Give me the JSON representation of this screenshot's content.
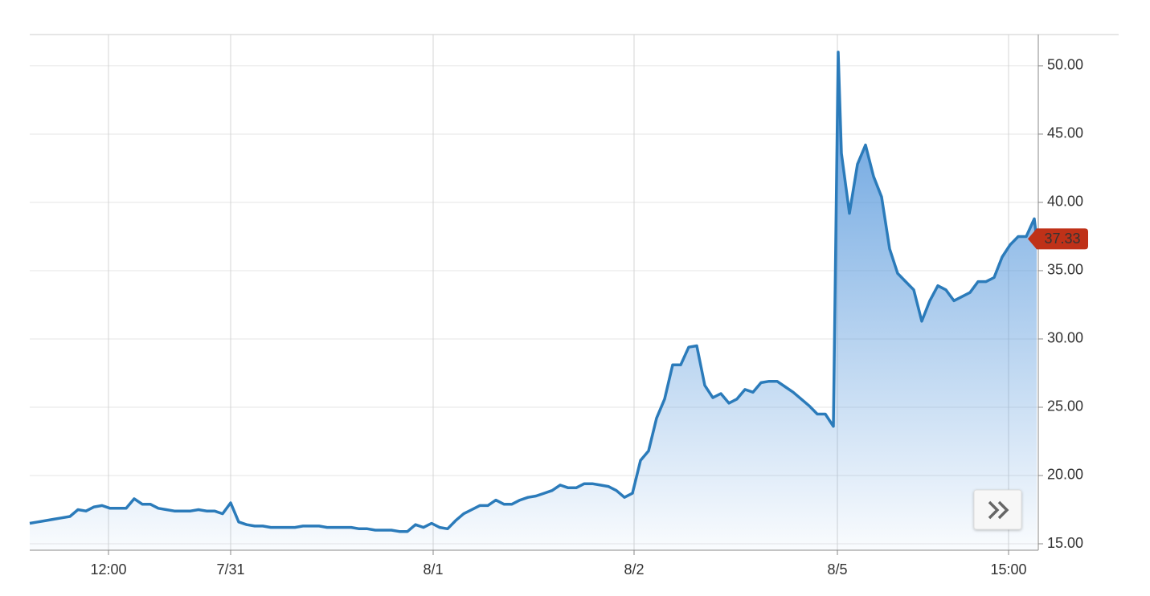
{
  "chart_data": {
    "type": "area",
    "x": [
      0,
      1,
      2,
      3,
      4,
      5,
      6,
      7,
      8,
      9,
      10,
      11,
      12,
      13,
      14,
      15,
      16,
      17,
      18,
      19,
      20,
      21,
      22,
      23,
      24,
      25,
      26,
      27,
      28,
      29,
      30,
      31,
      32,
      33,
      34,
      35,
      36,
      37,
      38,
      39,
      40,
      41,
      42,
      43,
      44,
      45,
      46,
      47,
      48,
      49,
      50,
      51,
      52,
      53,
      54,
      55,
      56,
      57,
      58,
      59,
      60,
      61,
      62,
      63,
      64,
      65,
      66,
      67,
      68,
      69,
      70,
      71,
      72,
      73,
      74,
      75,
      76,
      77,
      78,
      79,
      80,
      81,
      82,
      83,
      84,
      85,
      86,
      87,
      88,
      89,
      90,
      91,
      92,
      93,
      94,
      95,
      96,
      97,
      98,
      99,
      100,
      100.6,
      101,
      102,
      103,
      104,
      105,
      106,
      107,
      108,
      109,
      110,
      111,
      112,
      113,
      114,
      115,
      116,
      117,
      118,
      119,
      120,
      121,
      122,
      123,
      124,
      125,
      125.3
    ],
    "values": [
      16.5,
      16.6,
      16.7,
      16.8,
      16.9,
      17.0,
      17.5,
      17.4,
      17.7,
      17.8,
      17.6,
      17.6,
      17.6,
      18.3,
      17.9,
      17.9,
      17.6,
      17.5,
      17.4,
      17.4,
      17.4,
      17.5,
      17.4,
      17.4,
      17.2,
      18.0,
      16.6,
      16.4,
      16.3,
      16.3,
      16.2,
      16.2,
      16.2,
      16.2,
      16.3,
      16.3,
      16.3,
      16.2,
      16.2,
      16.2,
      16.2,
      16.1,
      16.1,
      16.0,
      16.0,
      16.0,
      15.9,
      15.9,
      16.4,
      16.2,
      16.5,
      16.2,
      16.1,
      16.7,
      17.2,
      17.5,
      17.8,
      17.8,
      18.2,
      17.9,
      17.9,
      18.2,
      18.4,
      18.5,
      18.7,
      18.9,
      19.3,
      19.1,
      19.1,
      19.4,
      19.4,
      19.3,
      19.2,
      18.9,
      18.4,
      18.7,
      21.1,
      21.8,
      24.2,
      25.6,
      28.1,
      28.1,
      29.4,
      29.5,
      26.6,
      25.7,
      26.0,
      25.3,
      25.6,
      26.3,
      26.1,
      26.8,
      26.9,
      26.9,
      26.5,
      26.1,
      25.6,
      25.1,
      24.5,
      24.5,
      23.6,
      51.0,
      43.6,
      39.2,
      42.8,
      44.2,
      41.9,
      40.4,
      36.6,
      34.8,
      34.2,
      33.6,
      31.3,
      32.8,
      33.9,
      33.6,
      32.8,
      33.1,
      33.4,
      34.2,
      34.2,
      34.5,
      36.0,
      36.9,
      37.5,
      37.5,
      38.8,
      37.33
    ],
    "color": "#2b7bba",
    "badge_color": "#bf3118",
    "xlim": [
      0,
      125.5
    ],
    "xticks": [
      {
        "value": 9.8,
        "label": "12:00"
      },
      {
        "value": 25,
        "label": "7/31"
      },
      {
        "value": 50.2,
        "label": "8/1"
      },
      {
        "value": 75.2,
        "label": "8/2"
      },
      {
        "value": 100.5,
        "label": "8/5"
      },
      {
        "value": 121.8,
        "label": "15:00"
      }
    ],
    "ylim": [
      14.53,
      52.29
    ],
    "yticks": [
      {
        "value": 15,
        "label": "15.00"
      },
      {
        "value": 20,
        "label": "20.00"
      },
      {
        "value": 25,
        "label": "25.00"
      },
      {
        "value": 30,
        "label": "30.00"
      },
      {
        "value": 35,
        "label": "35.00"
      },
      {
        "value": 40,
        "label": "40.00"
      },
      {
        "value": 45,
        "label": "45.00"
      },
      {
        "value": 50,
        "label": "50.00"
      }
    ],
    "grid": true
  }
}
